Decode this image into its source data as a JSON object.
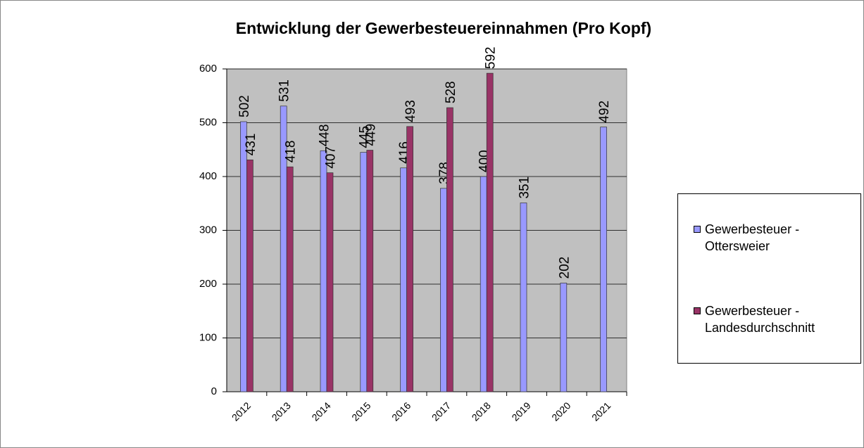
{
  "chart_data": {
    "type": "bar",
    "title": "Entwicklung der Gewerbesteuereinnahmen (Pro Kopf)",
    "categories": [
      "2012",
      "2013",
      "2014",
      "2015",
      "2016",
      "2017",
      "2018",
      "2019",
      "2020",
      "2021"
    ],
    "series": [
      {
        "name": "Gewerbesteuer - Ottersweier",
        "color": "#9999ff",
        "values": [
          502,
          531,
          448,
          445,
          416,
          378,
          400,
          351,
          202,
          492
        ]
      },
      {
        "name": "Gewerbesteuer - Landesdurchschnitt",
        "color": "#993366",
        "values": [
          431,
          418,
          407,
          449,
          493,
          528,
          592,
          null,
          null,
          null
        ]
      }
    ],
    "ylim": [
      0,
      600
    ],
    "yticks": [
      0,
      100,
      200,
      300,
      400,
      500,
      600
    ],
    "grid": true
  }
}
